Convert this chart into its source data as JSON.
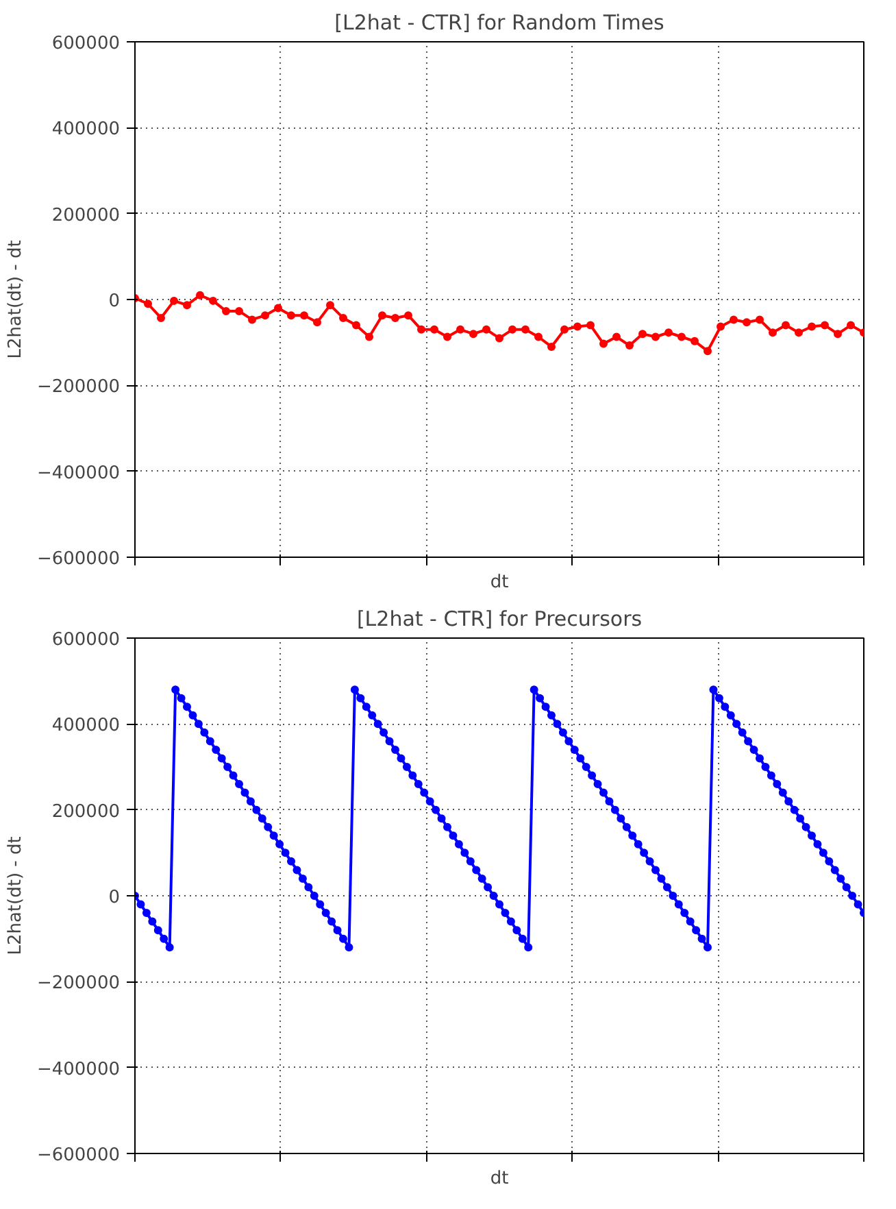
{
  "chart_data": [
    {
      "type": "line",
      "title": "[L2hat - CTR] for Random Times",
      "xlabel": "dt",
      "ylabel": "L2hat(dt) - dt",
      "categories": [
        null,
        null,
        null,
        null,
        null,
        null,
        null,
        null,
        null,
        null,
        null,
        null,
        null,
        null,
        null,
        null,
        null,
        null,
        null,
        null,
        null,
        null,
        null,
        null,
        null,
        null,
        null,
        null,
        null,
        null,
        null,
        null,
        null,
        null,
        null,
        null,
        null,
        null,
        null,
        null,
        null,
        null,
        null,
        null,
        null,
        null,
        null,
        null,
        null,
        null,
        null,
        null,
        null,
        null,
        null,
        null,
        null
      ],
      "series": [
        {
          "color": "#ff0000",
          "values": [
            3000,
            -10000,
            -43000,
            -3000,
            -13000,
            10000,
            -3000,
            -27000,
            -27000,
            -47000,
            -37000,
            -20000,
            -37000,
            -37000,
            -53000,
            -13000,
            -43000,
            -60000,
            -87000,
            -37000,
            -43000,
            -37000,
            -70000,
            -70000,
            -87000,
            -70000,
            -80000,
            -70000,
            -90000,
            -70000,
            -70000,
            -87000,
            -110000,
            -70000,
            -63000,
            -60000,
            -103000,
            -87000,
            -107000,
            -80000,
            -87000,
            -77000,
            -87000,
            -97000,
            -120000,
            -63000,
            -47000,
            -53000,
            -47000,
            -77000,
            -60000,
            -77000,
            -63000,
            -60000,
            -80000,
            -60000,
            -77000
          ]
        }
      ],
      "ylim": [
        -600000,
        600000
      ],
      "yticks": [
        {
          "value": -600000,
          "label": "−600000"
        },
        {
          "value": -400000,
          "label": "−400000"
        },
        {
          "value": -200000,
          "label": "−200000"
        },
        0,
        200000,
        400000,
        600000
      ],
      "grid": true,
      "marker": "circle",
      "line_style": "solid",
      "tick_labels": "y"
    },
    {
      "type": "line",
      "title": "[L2hat - CTR] for Precursors",
      "xlabel": "dt",
      "ylabel": "L2hat(dt) - dt",
      "categories": [
        null,
        null,
        null,
        null,
        null,
        null,
        null,
        null,
        null,
        null,
        null,
        null,
        null,
        null,
        null,
        null,
        null,
        null,
        null,
        null,
        null,
        null,
        null,
        null,
        null,
        null,
        null,
        null,
        null,
        null,
        null,
        null,
        null,
        null,
        null,
        null,
        null,
        null,
        null,
        null,
        null,
        null,
        null,
        null,
        null,
        null,
        null,
        null,
        null,
        null,
        null,
        null,
        null,
        null,
        null,
        null,
        null,
        null,
        null,
        null,
        null,
        null,
        null,
        null,
        null,
        null,
        null,
        null,
        null,
        null,
        null,
        null,
        null,
        null,
        null,
        null,
        null,
        null,
        null,
        null,
        null,
        null,
        null,
        null,
        null,
        null,
        null,
        null,
        null,
        null,
        null,
        null,
        null,
        null,
        null,
        null,
        null,
        null,
        null,
        null,
        null,
        null,
        null,
        null,
        null,
        null,
        null,
        null,
        null,
        null,
        null,
        null,
        null,
        null,
        null,
        null,
        null,
        null,
        null,
        null,
        null,
        null,
        null,
        null,
        null,
        null,
        null
      ],
      "series": [
        {
          "color": "#0000ff",
          "values": [
            0,
            -20000,
            -40000,
            -60000,
            -80000,
            -100000,
            -120000,
            480000,
            460000,
            440000,
            420000,
            400000,
            380000,
            360000,
            340000,
            320000,
            300000,
            280000,
            260000,
            240000,
            220000,
            200000,
            180000,
            160000,
            140000,
            120000,
            100000,
            80000,
            60000,
            40000,
            20000,
            0,
            -20000,
            -40000,
            -60000,
            -80000,
            -100000,
            -120000,
            480000,
            460000,
            440000,
            420000,
            400000,
            380000,
            360000,
            340000,
            320000,
            300000,
            280000,
            260000,
            240000,
            220000,
            200000,
            180000,
            160000,
            140000,
            120000,
            100000,
            80000,
            60000,
            40000,
            20000,
            0,
            -20000,
            -40000,
            -60000,
            -80000,
            -100000,
            -120000,
            480000,
            460000,
            440000,
            420000,
            400000,
            380000,
            360000,
            340000,
            320000,
            300000,
            280000,
            260000,
            240000,
            220000,
            200000,
            180000,
            160000,
            140000,
            120000,
            100000,
            80000,
            60000,
            40000,
            20000,
            0,
            -20000,
            -40000,
            -60000,
            -80000,
            -100000,
            -120000,
            480000,
            460000,
            440000,
            420000,
            400000,
            380000,
            360000,
            340000,
            320000,
            300000,
            280000,
            260000,
            240000,
            220000,
            200000,
            180000,
            160000,
            140000,
            120000,
            100000,
            80000,
            60000,
            40000,
            20000,
            0,
            -20000,
            -40000
          ]
        }
      ],
      "ylim": [
        -600000,
        600000
      ],
      "yticks": [
        {
          "value": -600000,
          "label": "−600000"
        },
        {
          "value": -400000,
          "label": "−400000"
        },
        {
          "value": -200000,
          "label": "−200000"
        },
        0,
        200000,
        400000,
        600000
      ],
      "grid": true,
      "marker": "circle",
      "line_style": "solid",
      "tick_labels": "y"
    }
  ]
}
